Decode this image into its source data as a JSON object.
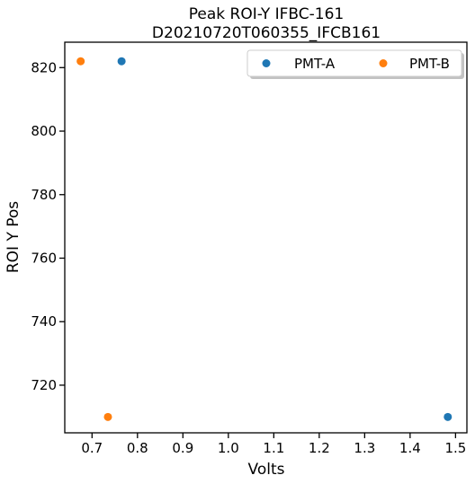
{
  "chart_data": {
    "type": "scatter",
    "title": "Peak ROI-Y IFBC-161",
    "subtitle": "D20210720T060355_IFCB161",
    "xlabel": "Volts",
    "ylabel": "ROI Y Pos",
    "xlim": [
      0.64,
      1.525
    ],
    "ylim": [
      705,
      828
    ],
    "xticks": [
      0.7,
      0.8,
      0.9,
      1.0,
      1.1,
      1.2,
      1.3,
      1.4,
      1.5
    ],
    "xtick_labels": [
      "0.7",
      "0.8",
      "0.9",
      "1.0",
      "1.1",
      "1.2",
      "1.3",
      "1.4",
      "1.5"
    ],
    "yticks": [
      720,
      740,
      760,
      780,
      800,
      820
    ],
    "ytick_labels": [
      "720",
      "740",
      "760",
      "780",
      "800",
      "820"
    ],
    "grid": false,
    "legend_position": "top-right",
    "series": [
      {
        "name": "PMT-A",
        "color": "#1f77b4",
        "points": [
          {
            "x": 0.765,
            "y": 822
          },
          {
            "x": 1.483,
            "y": 710
          }
        ]
      },
      {
        "name": "PMT-B",
        "color": "#ff7f0e",
        "points": [
          {
            "x": 0.675,
            "y": 822
          },
          {
            "x": 0.735,
            "y": 710
          }
        ]
      }
    ]
  }
}
